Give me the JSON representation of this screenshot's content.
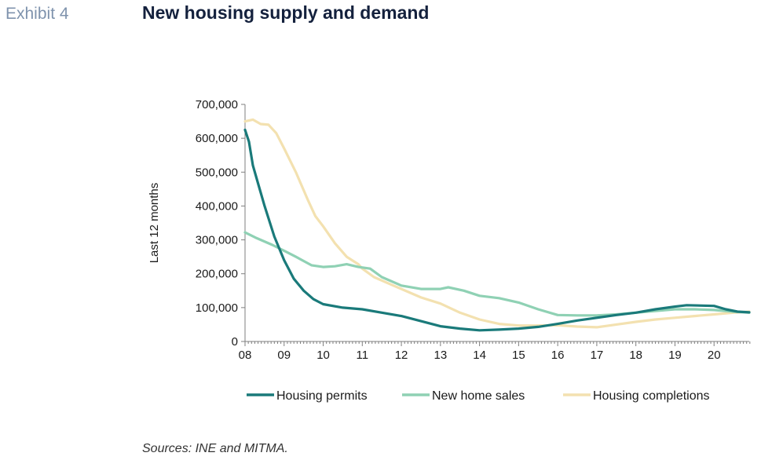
{
  "header": {
    "exhibit_label": "Exhibit 4",
    "title": "New housing supply and demand"
  },
  "footer": {
    "source": "Sources: INE and MITMA."
  },
  "chart_data": {
    "type": "line",
    "ylabel": "Last 12 months",
    "ylim": [
      0,
      700000
    ],
    "xlim": [
      2008,
      2020.9
    ],
    "yticks": [
      0,
      100000,
      200000,
      300000,
      400000,
      500000,
      600000,
      700000
    ],
    "ytick_labels": [
      "0",
      "100,000",
      "200,000",
      "300,000",
      "400,000",
      "500,000",
      "600,000",
      "700,000"
    ],
    "xticks": [
      2008,
      2009,
      2010,
      2011,
      2012,
      2013,
      2014,
      2015,
      2016,
      2017,
      2018,
      2019,
      2020
    ],
    "xtick_labels": [
      "08",
      "09",
      "10",
      "11",
      "12",
      "13",
      "14",
      "15",
      "16",
      "17",
      "18",
      "19",
      "20"
    ],
    "legend_position": "bottom",
    "series": [
      {
        "name": "Housing permits",
        "color": "#1a7a7a",
        "points": [
          [
            2008.0,
            625000
          ],
          [
            2008.1,
            590000
          ],
          [
            2008.2,
            520000
          ],
          [
            2008.35,
            460000
          ],
          [
            2008.5,
            400000
          ],
          [
            2008.75,
            310000
          ],
          [
            2009.0,
            240000
          ],
          [
            2009.25,
            185000
          ],
          [
            2009.5,
            150000
          ],
          [
            2009.75,
            125000
          ],
          [
            2010.0,
            110000
          ],
          [
            2010.5,
            100000
          ],
          [
            2011.0,
            95000
          ],
          [
            2011.5,
            85000
          ],
          [
            2012.0,
            75000
          ],
          [
            2012.5,
            60000
          ],
          [
            2013.0,
            45000
          ],
          [
            2013.5,
            38000
          ],
          [
            2014.0,
            33000
          ],
          [
            2014.5,
            35000
          ],
          [
            2015.0,
            38000
          ],
          [
            2015.5,
            43000
          ],
          [
            2016.0,
            52000
          ],
          [
            2016.5,
            62000
          ],
          [
            2017.0,
            70000
          ],
          [
            2017.5,
            78000
          ],
          [
            2018.0,
            85000
          ],
          [
            2018.5,
            95000
          ],
          [
            2019.0,
            103000
          ],
          [
            2019.3,
            107000
          ],
          [
            2019.7,
            106000
          ],
          [
            2020.0,
            105000
          ],
          [
            2020.3,
            95000
          ],
          [
            2020.6,
            88000
          ],
          [
            2020.9,
            86000
          ]
        ]
      },
      {
        "name": "New home sales",
        "color": "#8fd1b4",
        "points": [
          [
            2008.0,
            322000
          ],
          [
            2008.3,
            305000
          ],
          [
            2008.7,
            285000
          ],
          [
            2009.0,
            268000
          ],
          [
            2009.3,
            250000
          ],
          [
            2009.7,
            225000
          ],
          [
            2010.0,
            220000
          ],
          [
            2010.3,
            222000
          ],
          [
            2010.6,
            228000
          ],
          [
            2010.9,
            220000
          ],
          [
            2011.2,
            215000
          ],
          [
            2011.5,
            190000
          ],
          [
            2012.0,
            165000
          ],
          [
            2012.5,
            155000
          ],
          [
            2013.0,
            155000
          ],
          [
            2013.2,
            160000
          ],
          [
            2013.6,
            150000
          ],
          [
            2014.0,
            135000
          ],
          [
            2014.5,
            128000
          ],
          [
            2015.0,
            115000
          ],
          [
            2015.5,
            95000
          ],
          [
            2016.0,
            78000
          ],
          [
            2016.5,
            77000
          ],
          [
            2017.0,
            77000
          ],
          [
            2017.5,
            80000
          ],
          [
            2018.0,
            85000
          ],
          [
            2018.5,
            90000
          ],
          [
            2019.0,
            95000
          ],
          [
            2019.5,
            95000
          ],
          [
            2020.0,
            93000
          ],
          [
            2020.5,
            88000
          ],
          [
            2020.9,
            85000
          ]
        ]
      },
      {
        "name": "Housing completions",
        "color": "#f3e1b0",
        "points": [
          [
            2008.0,
            650000
          ],
          [
            2008.2,
            655000
          ],
          [
            2008.4,
            642000
          ],
          [
            2008.6,
            640000
          ],
          [
            2008.8,
            615000
          ],
          [
            2009.0,
            570000
          ],
          [
            2009.3,
            500000
          ],
          [
            2009.6,
            420000
          ],
          [
            2009.8,
            370000
          ],
          [
            2010.0,
            340000
          ],
          [
            2010.3,
            290000
          ],
          [
            2010.6,
            250000
          ],
          [
            2010.9,
            228000
          ],
          [
            2011.0,
            215000
          ],
          [
            2011.3,
            190000
          ],
          [
            2011.7,
            170000
          ],
          [
            2012.0,
            155000
          ],
          [
            2012.5,
            130000
          ],
          [
            2013.0,
            112000
          ],
          [
            2013.5,
            85000
          ],
          [
            2014.0,
            65000
          ],
          [
            2014.5,
            52000
          ],
          [
            2015.0,
            47000
          ],
          [
            2015.5,
            47000
          ],
          [
            2016.0,
            48000
          ],
          [
            2016.5,
            44000
          ],
          [
            2017.0,
            42000
          ],
          [
            2017.5,
            50000
          ],
          [
            2018.0,
            58000
          ],
          [
            2018.5,
            65000
          ],
          [
            2019.0,
            70000
          ],
          [
            2019.5,
            75000
          ],
          [
            2020.0,
            80000
          ],
          [
            2020.5,
            85000
          ],
          [
            2020.9,
            88000
          ]
        ]
      }
    ]
  }
}
